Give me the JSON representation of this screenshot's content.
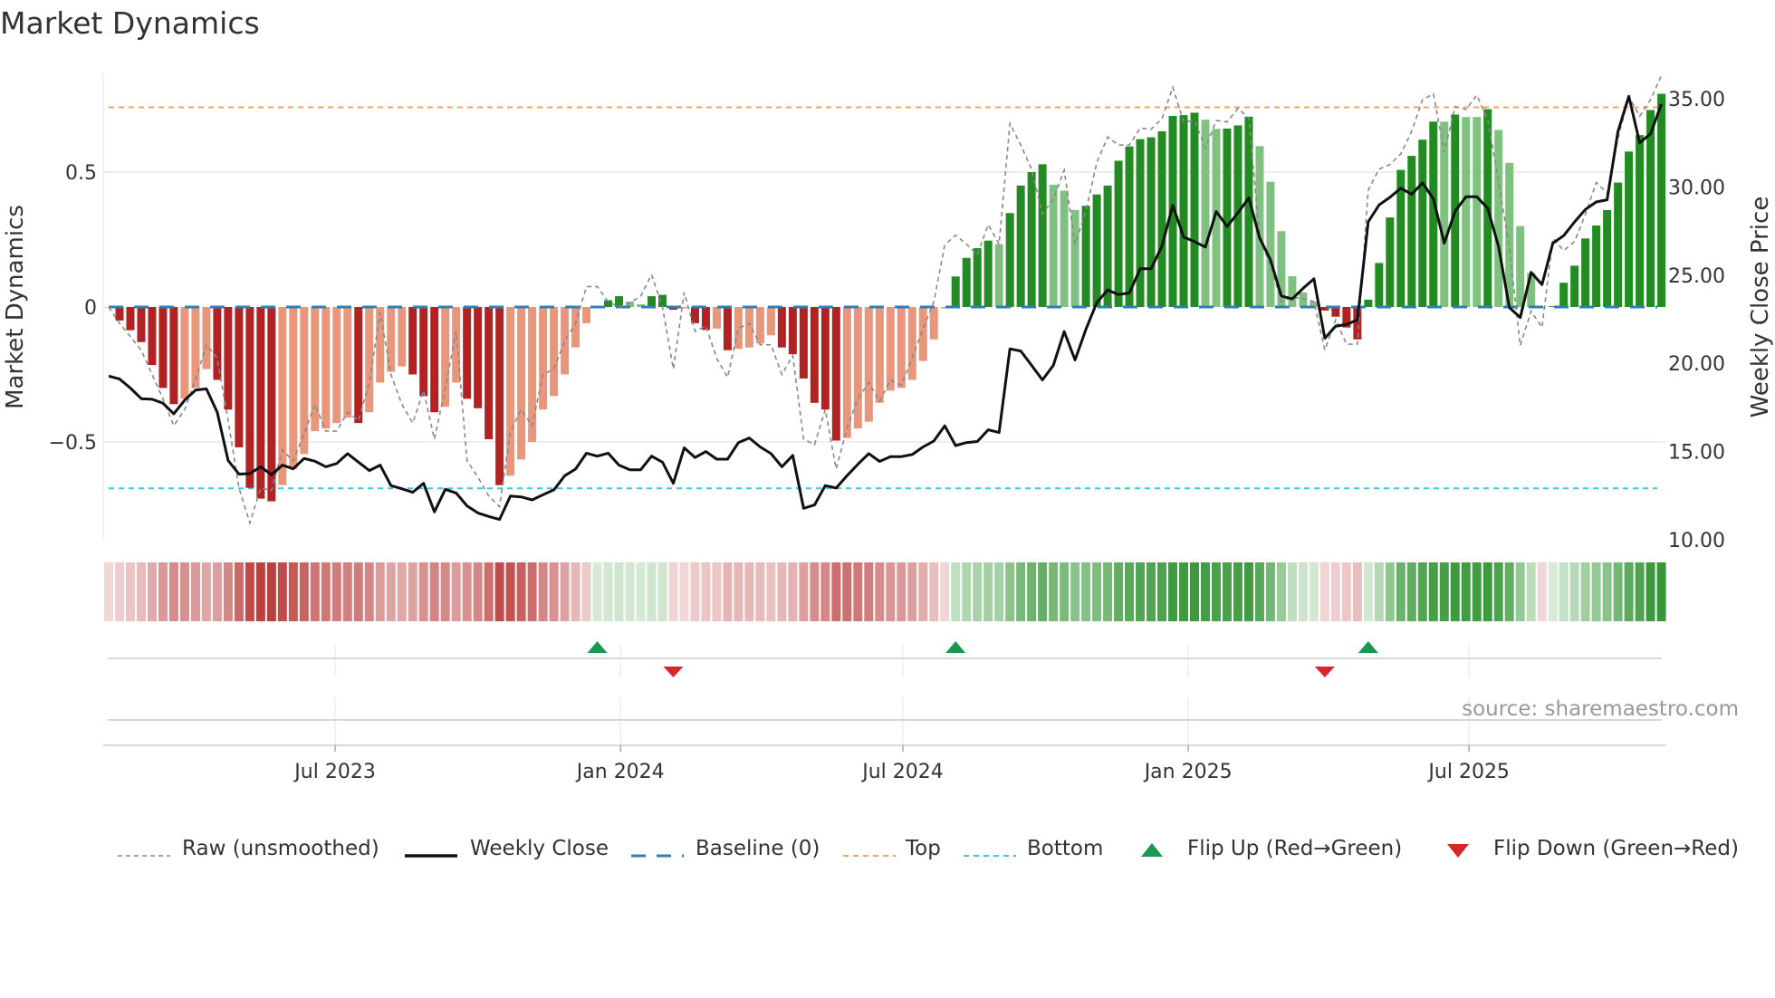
{
  "title": "Market Dynamics",
  "source": "source: sharemaestro.com",
  "colors": {
    "bar_neg_strong": "#b22222",
    "bar_neg_weak": "#e9967a",
    "bar_pos_strong": "#228b22",
    "bar_pos_weak": "#80c080",
    "close": "#111111",
    "raw": "#888888",
    "baseline": "#2c7fb8",
    "top": "#f4a460",
    "bottom": "#3ec7d9",
    "flip_up": "#1a9850",
    "flip_down": "#d62728"
  },
  "legend": [
    {
      "label": "Raw (unsmoothed)",
      "kind": "raw"
    },
    {
      "label": "Weekly Close",
      "kind": "close"
    },
    {
      "label": "Baseline (0)",
      "kind": "baseline"
    },
    {
      "label": "Top",
      "kind": "top"
    },
    {
      "label": "Bottom",
      "kind": "bottom"
    },
    {
      "label": "Flip Up (Red→Green)",
      "kind": "flip_up"
    },
    {
      "label": "Flip Down (Green→Red)",
      "kind": "flip_down"
    }
  ],
  "chart_data": {
    "type": "bar",
    "title": "Market Dynamics",
    "ylabel": "Market Dynamics",
    "y2label": "Weekly Close Price",
    "start_week": "2023-02-05",
    "interval": "weekly",
    "ylim": [
      -0.82,
      0.87
    ],
    "y2lim": [
      10,
      36.5
    ],
    "yticks": [
      {
        "v": 0.5,
        "label": "0.5"
      },
      {
        "v": 0,
        "label": "0"
      },
      {
        "v": -0.5,
        "label": "−0.5"
      }
    ],
    "y2ticks": [
      {
        "v": 35,
        "label": "35.00"
      },
      {
        "v": 30,
        "label": "30.00"
      },
      {
        "v": 25,
        "label": "25.00"
      },
      {
        "v": 20,
        "label": "20.00"
      },
      {
        "v": 15,
        "label": "15.00"
      },
      {
        "v": 10,
        "label": "10.00"
      }
    ],
    "xticks": [
      {
        "date": "2023-07-01",
        "label": "Jul 2023"
      },
      {
        "date": "2024-01-01",
        "label": "Jan 2024"
      },
      {
        "date": "2024-07-01",
        "label": "Jul 2024"
      },
      {
        "date": "2025-01-01",
        "label": "Jan 2025"
      },
      {
        "date": "2025-07-01",
        "label": "Jul 2025"
      }
    ],
    "top_level": 0.74,
    "bottom_level": -0.672,
    "baseline": 0,
    "values": [
      0,
      -0.05,
      -0.086,
      -0.13,
      -0.215,
      -0.3,
      -0.36,
      -0.34,
      -0.3,
      -0.23,
      -0.27,
      -0.38,
      -0.52,
      -0.67,
      -0.71,
      -0.72,
      -0.66,
      -0.6,
      -0.545,
      -0.46,
      -0.45,
      -0.43,
      -0.41,
      -0.43,
      -0.39,
      -0.28,
      -0.24,
      -0.22,
      -0.25,
      -0.33,
      -0.39,
      -0.37,
      -0.28,
      -0.34,
      -0.375,
      -0.49,
      -0.66,
      -0.625,
      -0.565,
      -0.5,
      -0.38,
      -0.33,
      -0.25,
      -0.15,
      -0.06,
      0.005,
      0.025,
      0.04,
      0.02,
      0.01,
      0.04,
      0.045,
      -0.01,
      -0.005,
      -0.06,
      -0.085,
      -0.08,
      -0.16,
      -0.155,
      -0.15,
      -0.135,
      -0.105,
      -0.15,
      -0.175,
      -0.265,
      -0.355,
      -0.38,
      -0.495,
      -0.485,
      -0.45,
      -0.425,
      -0.355,
      -0.31,
      -0.3,
      -0.27,
      -0.2,
      -0.12,
      -0.005,
      0.113,
      0.182,
      0.218,
      0.246,
      0.233,
      0.348,
      0.45,
      0.5,
      0.529,
      0.453,
      0.431,
      0.36,
      0.375,
      0.417,
      0.45,
      0.542,
      0.595,
      0.622,
      0.629,
      0.651,
      0.708,
      0.711,
      0.72,
      0.694,
      0.66,
      0.661,
      0.673,
      0.705,
      0.596,
      0.464,
      0.281,
      0.114,
      0.054,
      0.02,
      -0.013,
      -0.036,
      -0.076,
      -0.12,
      0.027,
      0.163,
      0.332,
      0.508,
      0.56,
      0.62,
      0.687,
      0.687,
      0.713,
      0.704,
      0.704,
      0.733,
      0.656,
      0.534,
      0.3,
      0.126,
      0,
      0.003,
      0.09,
      0.153,
      0.254,
      0.302,
      0.359,
      0.461,
      0.576,
      0.637,
      0.73,
      0.79
    ],
    "raw": [
      0,
      -0.06,
      -0.11,
      -0.16,
      -0.25,
      -0.34,
      -0.44,
      -0.38,
      -0.27,
      -0.14,
      -0.19,
      -0.42,
      -0.67,
      -0.8,
      -0.67,
      -0.68,
      -0.53,
      -0.57,
      -0.47,
      -0.36,
      -0.46,
      -0.46,
      -0.39,
      -0.42,
      -0.28,
      -0.02,
      -0.25,
      -0.36,
      -0.43,
      -0.31,
      -0.49,
      -0.3,
      -0.09,
      -0.57,
      -0.63,
      -0.7,
      -0.74,
      -0.46,
      -0.38,
      -0.44,
      -0.25,
      -0.23,
      -0.125,
      -0.06,
      0.076,
      0.076,
      0.02,
      0,
      0.015,
      0.04,
      0.12,
      0,
      -0.23,
      0.054,
      -0.09,
      -0.07,
      -0.19,
      -0.26,
      -0.08,
      -0.06,
      -0.14,
      -0.14,
      -0.25,
      -0.18,
      -0.49,
      -0.51,
      -0.38,
      -0.6,
      -0.45,
      -0.34,
      -0.28,
      -0.35,
      -0.27,
      -0.29,
      -0.19,
      -0.08,
      0.02,
      0.23,
      0.266,
      0.233,
      0.194,
      0.305,
      0.233,
      0.68,
      0.6,
      0.51,
      0.345,
      0.4,
      0.507,
      0.233,
      0.356,
      0.535,
      0.63,
      0.6,
      0.6,
      0.663,
      0.658,
      0.697,
      0.814,
      0.686,
      0.691,
      0.59,
      0.691,
      0.686,
      0.736,
      0.7,
      0.255,
      0.154,
      0.02,
      0.037,
      0.031,
      0.02,
      -0.159,
      -0.047,
      -0.138,
      -0.138,
      0.433,
      0.511,
      0.528,
      0.567,
      0.651,
      0.768,
      0.79,
      0.573,
      0.743,
      0.732,
      0.785,
      0.696,
      0.466,
      0.22,
      -0.143,
      -0.015,
      -0.076,
      0.254,
      0.209,
      0.243,
      0.343,
      0.461,
      0.422,
      0.623,
      0.78,
      0.707,
      0.768,
      0.858
    ],
    "close": [
      19.28,
      19.11,
      18.6,
      18.0,
      17.96,
      17.74,
      17.14,
      17.91,
      18.48,
      18.55,
      17.23,
      14.49,
      13.72,
      13.75,
      14.14,
      13.68,
      14.23,
      14.02,
      14.61,
      14.45,
      14.14,
      14.32,
      14.88,
      14.4,
      13.92,
      14.23,
      13.07,
      12.89,
      12.69,
      13.2,
      11.58,
      12.86,
      12.65,
      11.92,
      11.52,
      11.32,
      11.15,
      12.48,
      12.43,
      12.26,
      12.55,
      12.83,
      13.63,
      14.01,
      14.91,
      14.74,
      14.91,
      14.23,
      13.97,
      13.97,
      14.74,
      14.4,
      13.2,
      15.21,
      14.66,
      15.0,
      14.57,
      14.57,
      15.51,
      15.77,
      15.26,
      14.88,
      14.14,
      14.78,
      11.78,
      11.97,
      13.07,
      12.93,
      13.63,
      14.28,
      14.88,
      14.44,
      14.71,
      14.71,
      14.83,
      15.26,
      15.6,
      16.46,
      15.34,
      15.51,
      15.57,
      16.23,
      16.08,
      20.82,
      20.7,
      19.88,
      19.06,
      19.88,
      21.8,
      20.19,
      21.93,
      23.44,
      24.16,
      23.9,
      23.99,
      25.36,
      25.36,
      26.64,
      28.96,
      27.16,
      26.9,
      26.59,
      28.61,
      27.76,
      28.53,
      29.38,
      27.11,
      25.87,
      23.82,
      23.65,
      24.25,
      24.79,
      21.42,
      22.11,
      22.2,
      22.47,
      28.02,
      28.98,
      29.41,
      29.93,
      29.58,
      30.23,
      29.32,
      26.81,
      28.63,
      29.44,
      29.44,
      28.8,
      26.63,
      23.16,
      22.6,
      25.16,
      24.46,
      26.81,
      27.24,
      28.02,
      28.72,
      29.15,
      29.27,
      33.14,
      35.14,
      32.5,
      33.02,
      34.7
    ],
    "flips": [
      {
        "type": "up",
        "week": 45
      },
      {
        "type": "down",
        "week": 52
      },
      {
        "type": "up",
        "week": 78
      },
      {
        "type": "down",
        "week": 112
      },
      {
        "type": "up",
        "week": 116
      }
    ],
    "legend_position": "bottom"
  }
}
